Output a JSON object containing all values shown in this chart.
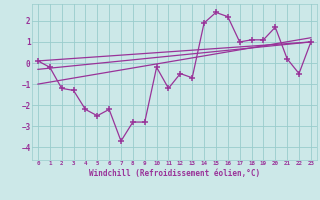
{
  "bg_color": "#cce8e8",
  "grid_color": "#99cccc",
  "line_color": "#993399",
  "marker_color": "#993399",
  "xlabel": "Windchill (Refroidissement éolien,°C)",
  "xlim": [
    -0.5,
    23.5
  ],
  "ylim": [
    -4.6,
    2.8
  ],
  "yticks": [
    -4,
    -3,
    -2,
    -1,
    0,
    1,
    2
  ],
  "xticks": [
    0,
    1,
    2,
    3,
    4,
    5,
    6,
    7,
    8,
    9,
    10,
    11,
    12,
    13,
    14,
    15,
    16,
    17,
    18,
    19,
    20,
    21,
    22,
    23
  ],
  "data_x": [
    0,
    1,
    2,
    3,
    4,
    5,
    6,
    7,
    8,
    9,
    10,
    11,
    12,
    13,
    14,
    15,
    16,
    17,
    18,
    19,
    20,
    21,
    22,
    23
  ],
  "data_y": [
    0.1,
    -0.2,
    -1.2,
    -1.3,
    -2.2,
    -2.5,
    -2.2,
    -3.7,
    -2.8,
    -2.8,
    -0.2,
    -1.2,
    -0.5,
    -0.7,
    1.9,
    2.4,
    2.2,
    1.0,
    1.1,
    1.1,
    1.7,
    0.2,
    -0.5,
    1.0
  ],
  "trend1_x": [
    0,
    23
  ],
  "trend1_y": [
    -1.0,
    1.2
  ],
  "trend2_x": [
    0,
    23
  ],
  "trend2_y": [
    -0.3,
    1.0
  ],
  "trend3_x": [
    0,
    23
  ],
  "trend3_y": [
    0.1,
    1.0
  ]
}
